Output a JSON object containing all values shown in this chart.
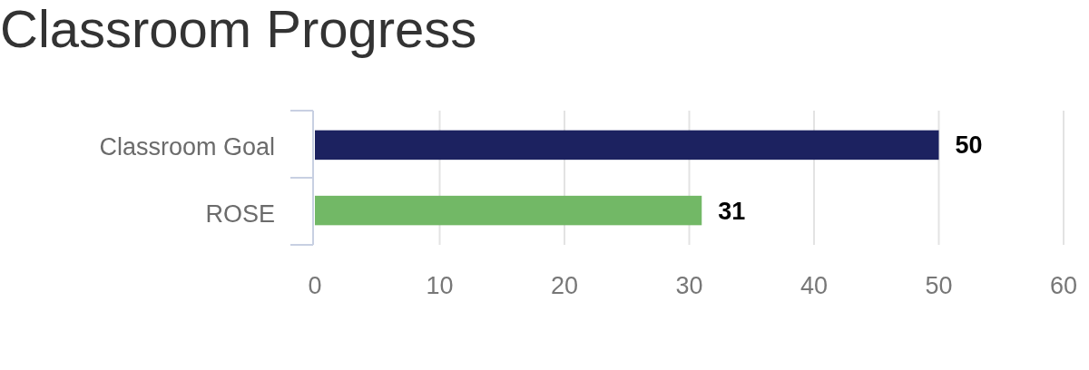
{
  "chart_data": {
    "type": "bar",
    "title": "Classroom Progress",
    "orientation": "horizontal",
    "categories": [
      "Classroom Goal",
      "ROSE"
    ],
    "values": [
      50,
      31
    ],
    "colors": [
      "#1c2260",
      "#72b866"
    ],
    "xlim": [
      0,
      60
    ],
    "xticks": [
      0,
      10,
      20,
      30,
      40,
      50,
      60
    ],
    "grid": "x",
    "data_labels": true
  }
}
